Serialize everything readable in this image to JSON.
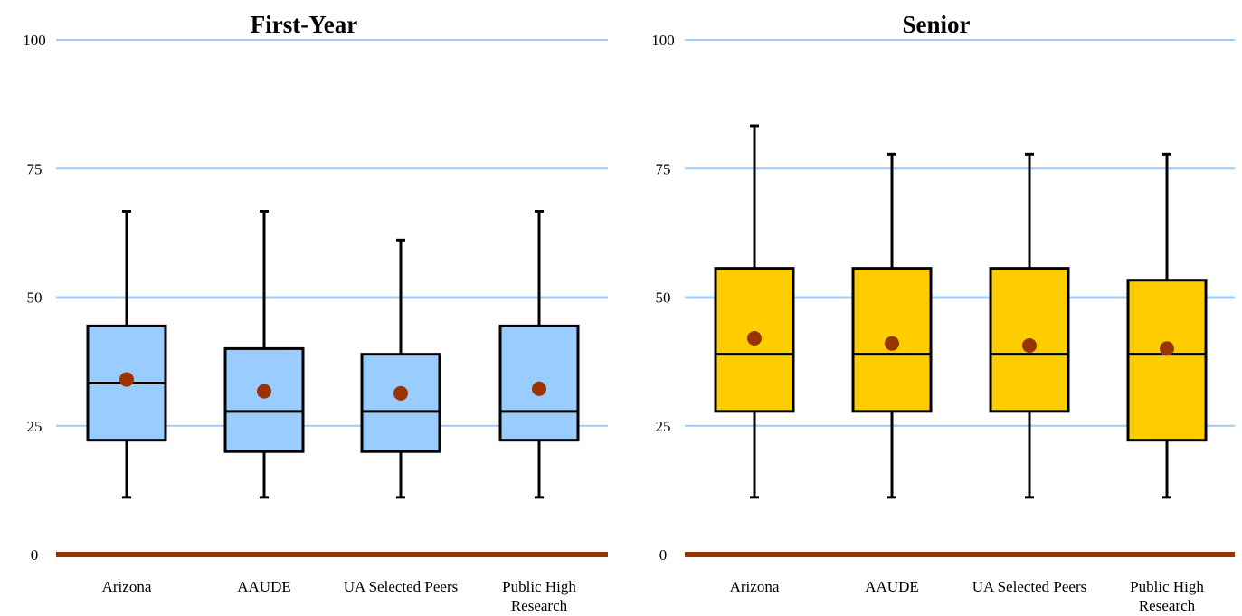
{
  "chart_data": [
    {
      "type": "boxplot",
      "title": "First-Year",
      "xlabel": "",
      "ylabel": "",
      "ylim": [
        0,
        100
      ],
      "yticks": [
        0,
        25,
        50,
        75,
        100
      ],
      "grid": true,
      "categories": [
        "Arizona",
        "AAUDE",
        "UA Selected Peers",
        "Public High Research"
      ],
      "series": [
        {
          "boxes": [
            {
              "min": 11.1,
              "q1": 22.2,
              "median": 33.3,
              "q3": 44.4,
              "max": 66.7,
              "mean": 34.0
            },
            {
              "min": 11.1,
              "q1": 20.0,
              "median": 27.8,
              "q3": 40.0,
              "max": 66.7,
              "mean": 31.7
            },
            {
              "min": 11.1,
              "q1": 20.0,
              "median": 27.8,
              "q3": 38.9,
              "max": 61.1,
              "mean": 31.3
            },
            {
              "min": 11.1,
              "q1": 22.2,
              "median": 27.8,
              "q3": 44.4,
              "max": 66.7,
              "mean": 32.2
            }
          ]
        }
      ],
      "colors": {
        "box": "#99ccff",
        "mean": "#993300",
        "grid": "#99ccff",
        "axis": "#993300"
      }
    },
    {
      "type": "boxplot",
      "title": "Senior",
      "xlabel": "",
      "ylabel": "",
      "ylim": [
        0,
        100
      ],
      "yticks": [
        0,
        25,
        50,
        75,
        100
      ],
      "grid": true,
      "categories": [
        "Arizona",
        "AAUDE",
        "UA Selected Peers",
        "Public High Research"
      ],
      "series": [
        {
          "boxes": [
            {
              "min": 11.1,
              "q1": 27.8,
              "median": 38.9,
              "q3": 55.6,
              "max": 83.3,
              "mean": 42.0
            },
            {
              "min": 11.1,
              "q1": 27.8,
              "median": 38.9,
              "q3": 55.6,
              "max": 77.8,
              "mean": 41.0
            },
            {
              "min": 11.1,
              "q1": 27.8,
              "median": 38.9,
              "q3": 55.6,
              "max": 77.8,
              "mean": 40.6
            },
            {
              "min": 11.1,
              "q1": 22.2,
              "median": 38.9,
              "q3": 53.3,
              "max": 77.8,
              "mean": 40.0
            }
          ]
        }
      ],
      "colors": {
        "box": "#ffcc00",
        "mean": "#993300",
        "grid": "#99ccff",
        "axis": "#993300"
      }
    }
  ]
}
